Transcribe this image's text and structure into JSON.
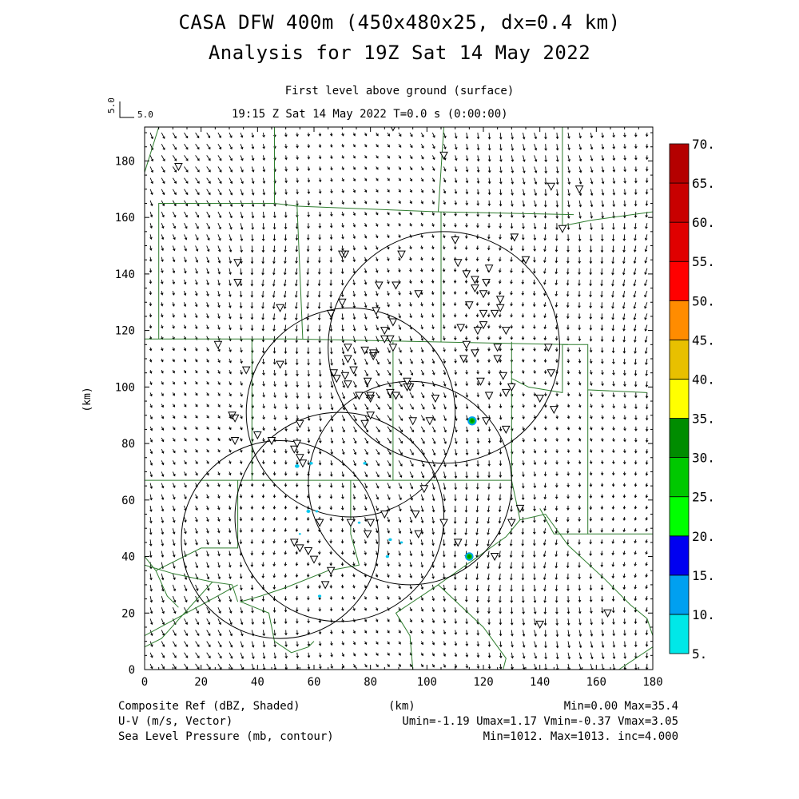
{
  "title": {
    "line1": "CASA DFW 400m (450x480x25, dx=0.4 km)",
    "line2": "Analysis for 19Z Sat 14 May 2022"
  },
  "subtitle": {
    "level": "First level above ground (surface)",
    "time": "19:15 Z Sat 14 May 2022   T=0.0 s (0:00:00)"
  },
  "vector_ref": {
    "label": "5.0",
    "side_label": "5.0"
  },
  "axes": {
    "xlabel": "(km)",
    "ylabel": "(km)",
    "xlim": [
      0,
      180
    ],
    "ylim": [
      0,
      192
    ],
    "xticks": [
      "0",
      "20",
      "40",
      "60",
      "80",
      "100",
      "120",
      "140",
      "160",
      "180"
    ],
    "yticks": [
      "0",
      "20",
      "40",
      "60",
      "80",
      "100",
      "120",
      "140",
      "160",
      "180"
    ]
  },
  "colorbar": {
    "labels": [
      "5.",
      "10.",
      "15.",
      "20.",
      "25.",
      "30.",
      "35.",
      "40.",
      "45.",
      "50.",
      "55.",
      "60.",
      "65.",
      "70."
    ],
    "colors": [
      "#00e8e8",
      "#00a0f0",
      "#0000f0",
      "#00ff00",
      "#00c800",
      "#008c00",
      "#ffff00",
      "#e8c000",
      "#ff8c00",
      "#ff0000",
      "#e00000",
      "#c80000",
      "#b40000",
      "#ff00ff",
      "#ff00ff"
    ]
  },
  "footer": {
    "left1": "Composite Ref (dBZ, Shaded)",
    "left2": "U-V (m/s, Vector)",
    "left3": "Sea Level Pressure (mb, contour)",
    "center1": "(km)",
    "right1": "Min=0.00 Max=35.4",
    "right2": "Umin=-1.19 Umax=1.17 Vmin=-0.37 Vmax=3.05",
    "right3": "Min=1012. Max=1013. inc=4.000"
  },
  "map_data": {
    "radar_rings": [
      {
        "cx": 48,
        "cy": 46,
        "r": 35
      },
      {
        "cx": 69,
        "cy": 54,
        "r": 37
      },
      {
        "cx": 73,
        "cy": 91,
        "r": 37
      },
      {
        "cx": 94,
        "cy": 66,
        "r": 36
      },
      {
        "cx": 106,
        "cy": 114,
        "r": 41
      }
    ],
    "stations": [
      [
        12,
        178
      ],
      [
        26,
        115
      ],
      [
        33,
        144
      ],
      [
        33,
        137
      ],
      [
        31,
        90
      ],
      [
        32,
        89
      ],
      [
        32,
        81
      ],
      [
        36,
        106
      ],
      [
        40,
        83
      ],
      [
        45,
        81
      ],
      [
        48,
        128
      ],
      [
        48,
        108
      ],
      [
        55,
        87
      ],
      [
        54,
        80
      ],
      [
        53,
        78
      ],
      [
        55,
        75
      ],
      [
        56,
        73
      ],
      [
        53,
        45
      ],
      [
        66,
        126
      ],
      [
        70,
        130
      ],
      [
        70,
        147
      ],
      [
        71,
        147
      ],
      [
        72,
        114
      ],
      [
        72,
        110
      ],
      [
        71,
        104
      ],
      [
        72,
        101
      ],
      [
        74,
        106
      ],
      [
        67,
        105
      ],
      [
        68,
        103
      ],
      [
        76,
        97
      ],
      [
        79,
        102
      ],
      [
        80,
        96
      ],
      [
        80,
        97
      ],
      [
        80,
        90
      ],
      [
        78,
        87
      ],
      [
        78,
        113
      ],
      [
        81,
        111
      ],
      [
        83,
        136
      ],
      [
        81,
        112
      ],
      [
        82,
        127
      ],
      [
        85,
        120
      ],
      [
        85,
        117
      ],
      [
        87,
        117
      ],
      [
        88,
        114
      ],
      [
        88,
        123
      ],
      [
        89,
        136
      ],
      [
        89,
        97
      ],
      [
        87,
        98
      ],
      [
        88,
        192
      ],
      [
        91,
        147
      ],
      [
        93,
        100
      ],
      [
        93,
        102
      ],
      [
        94,
        100
      ],
      [
        95,
        88
      ],
      [
        97,
        133
      ],
      [
        99,
        64
      ],
      [
        101,
        88
      ],
      [
        103,
        96
      ],
      [
        106,
        182
      ],
      [
        106,
        52
      ],
      [
        110,
        152
      ],
      [
        111,
        144
      ],
      [
        112,
        121
      ],
      [
        113,
        110
      ],
      [
        114,
        115
      ],
      [
        114,
        140
      ],
      [
        115,
        129
      ],
      [
        117,
        135
      ],
      [
        117,
        138
      ],
      [
        117,
        112
      ],
      [
        118,
        120
      ],
      [
        119,
        102
      ],
      [
        120,
        122
      ],
      [
        120,
        133
      ],
      [
        121,
        137
      ],
      [
        120,
        126
      ],
      [
        121,
        88
      ],
      [
        122,
        97
      ],
      [
        122,
        142
      ],
      [
        124,
        126
      ],
      [
        125,
        114
      ],
      [
        125,
        110
      ],
      [
        126,
        131
      ],
      [
        126,
        128
      ],
      [
        127,
        104
      ],
      [
        128,
        98
      ],
      [
        128,
        85
      ],
      [
        130,
        100
      ],
      [
        128,
        120
      ],
      [
        131,
        153
      ],
      [
        133,
        57
      ],
      [
        130,
        52
      ],
      [
        135,
        145
      ],
      [
        140,
        96
      ],
      [
        143,
        114
      ],
      [
        144,
        105
      ],
      [
        145,
        92
      ],
      [
        148,
        156
      ],
      [
        144,
        171
      ],
      [
        154,
        170
      ],
      [
        124,
        40
      ],
      [
        111,
        45
      ],
      [
        96,
        55
      ],
      [
        97,
        48
      ],
      [
        85,
        55
      ],
      [
        80,
        52
      ],
      [
        79,
        48
      ],
      [
        73,
        52
      ],
      [
        66,
        35
      ],
      [
        64,
        30
      ],
      [
        62,
        52
      ],
      [
        60,
        39
      ],
      [
        58,
        42
      ],
      [
        55,
        43
      ],
      [
        164,
        20
      ],
      [
        140,
        16
      ]
    ],
    "echoes": [
      {
        "x": 116,
        "y": 88,
        "r": 1.6,
        "level": "high"
      },
      {
        "x": 115,
        "y": 40,
        "r": 1.5,
        "level": "high"
      },
      {
        "x": 40,
        "y": 84,
        "r": 0.5,
        "level": "low"
      },
      {
        "x": 54,
        "y": 72,
        "r": 0.8,
        "level": "low"
      },
      {
        "x": 59,
        "y": 73,
        "r": 0.6,
        "level": "low"
      },
      {
        "x": 78,
        "y": 73,
        "r": 0.6,
        "level": "low"
      },
      {
        "x": 58,
        "y": 56,
        "r": 0.7,
        "level": "low"
      },
      {
        "x": 61,
        "y": 56,
        "r": 0.5,
        "level": "low"
      },
      {
        "x": 76,
        "y": 52,
        "r": 0.5,
        "level": "low"
      },
      {
        "x": 87,
        "y": 46,
        "r": 0.6,
        "level": "low"
      },
      {
        "x": 91,
        "y": 45,
        "r": 0.5,
        "level": "low"
      },
      {
        "x": 86,
        "y": 40,
        "r": 0.6,
        "level": "low"
      },
      {
        "x": 62,
        "y": 26,
        "r": 0.6,
        "level": "low"
      },
      {
        "x": 99,
        "y": 64,
        "r": 0.5,
        "level": "low"
      },
      {
        "x": 55,
        "y": 48,
        "r": 0.4,
        "level": "low"
      }
    ],
    "county_lines": [
      [
        [
          46,
          192
        ],
        [
          46,
          165
        ],
        [
          5,
          165
        ],
        [
          5,
          117
        ]
      ],
      [
        [
          46,
          165
        ],
        [
          54,
          164
        ],
        [
          54,
          165
        ]
      ],
      [
        [
          54,
          164
        ],
        [
          104,
          162
        ],
        [
          152,
          161
        ]
      ],
      [
        [
          104,
          162
        ],
        [
          106,
          192
        ]
      ],
      [
        [
          148,
          192
        ],
        [
          148,
          157
        ],
        [
          158,
          159
        ],
        [
          180,
          162
        ]
      ],
      [
        [
          0,
          117
        ],
        [
          52,
          117
        ],
        [
          150,
          115
        ]
      ],
      [
        [
          54,
          164
        ],
        [
          56,
          117
        ]
      ],
      [
        [
          105,
          162
        ],
        [
          105,
          116
        ]
      ],
      [
        [
          38,
          117
        ],
        [
          38,
          67
        ],
        [
          0,
          67
        ]
      ],
      [
        [
          38,
          67
        ],
        [
          130,
          67
        ]
      ],
      [
        [
          88,
          116
        ],
        [
          88,
          67
        ]
      ],
      [
        [
          130,
          116
        ],
        [
          130,
          67
        ]
      ],
      [
        [
          130,
          67
        ],
        [
          133,
          53
        ],
        [
          128,
          47
        ],
        [
          104,
          30
        ],
        [
          120,
          15
        ],
        [
          128,
          4
        ],
        [
          127,
          0
        ]
      ],
      [
        [
          130,
          103
        ],
        [
          136,
          100
        ],
        [
          148,
          98
        ],
        [
          148,
          115
        ],
        [
          157,
          115
        ],
        [
          157,
          99
        ],
        [
          178,
          98
        ]
      ],
      [
        [
          157,
          99
        ],
        [
          157,
          48
        ],
        [
          145,
          48
        ],
        [
          140,
          57
        ]
      ],
      [
        [
          157,
          48
        ],
        [
          180,
          48
        ]
      ],
      [
        [
          168,
          0
        ],
        [
          180,
          8
        ]
      ],
      [
        [
          133,
          53
        ],
        [
          142,
          55
        ],
        [
          150,
          44
        ],
        [
          163,
          32
        ],
        [
          172,
          23
        ],
        [
          178,
          18
        ],
        [
          180,
          12
        ]
      ],
      [
        [
          104,
          30
        ],
        [
          89,
          20
        ],
        [
          94,
          12
        ],
        [
          95,
          0
        ]
      ],
      [
        [
          73,
          67
        ],
        [
          73,
          48
        ],
        [
          76,
          37
        ],
        [
          65,
          35
        ],
        [
          50,
          29
        ],
        [
          41,
          26
        ],
        [
          34,
          24
        ],
        [
          44,
          20
        ],
        [
          46,
          10
        ],
        [
          52,
          6
        ],
        [
          58,
          8
        ],
        [
          60,
          10
        ]
      ],
      [
        [
          33,
          24
        ],
        [
          31,
          30
        ],
        [
          24,
          31
        ],
        [
          10,
          34
        ],
        [
          0,
          37
        ]
      ],
      [
        [
          33,
          67
        ],
        [
          33,
          43
        ],
        [
          20,
          43
        ],
        [
          4,
          35
        ]
      ],
      [
        [
          24,
          31
        ],
        [
          6,
          11
        ],
        [
          0,
          8
        ]
      ],
      [
        [
          33,
          30
        ],
        [
          24,
          25
        ],
        [
          0,
          12
        ]
      ],
      [
        [
          0,
          40
        ],
        [
          4,
          35
        ],
        [
          8,
          26
        ],
        [
          12,
          22
        ]
      ],
      [
        [
          5,
          192
        ],
        [
          0,
          176
        ]
      ]
    ],
    "vector_field": {
      "xstep": 4,
      "ystep": 4
    }
  }
}
